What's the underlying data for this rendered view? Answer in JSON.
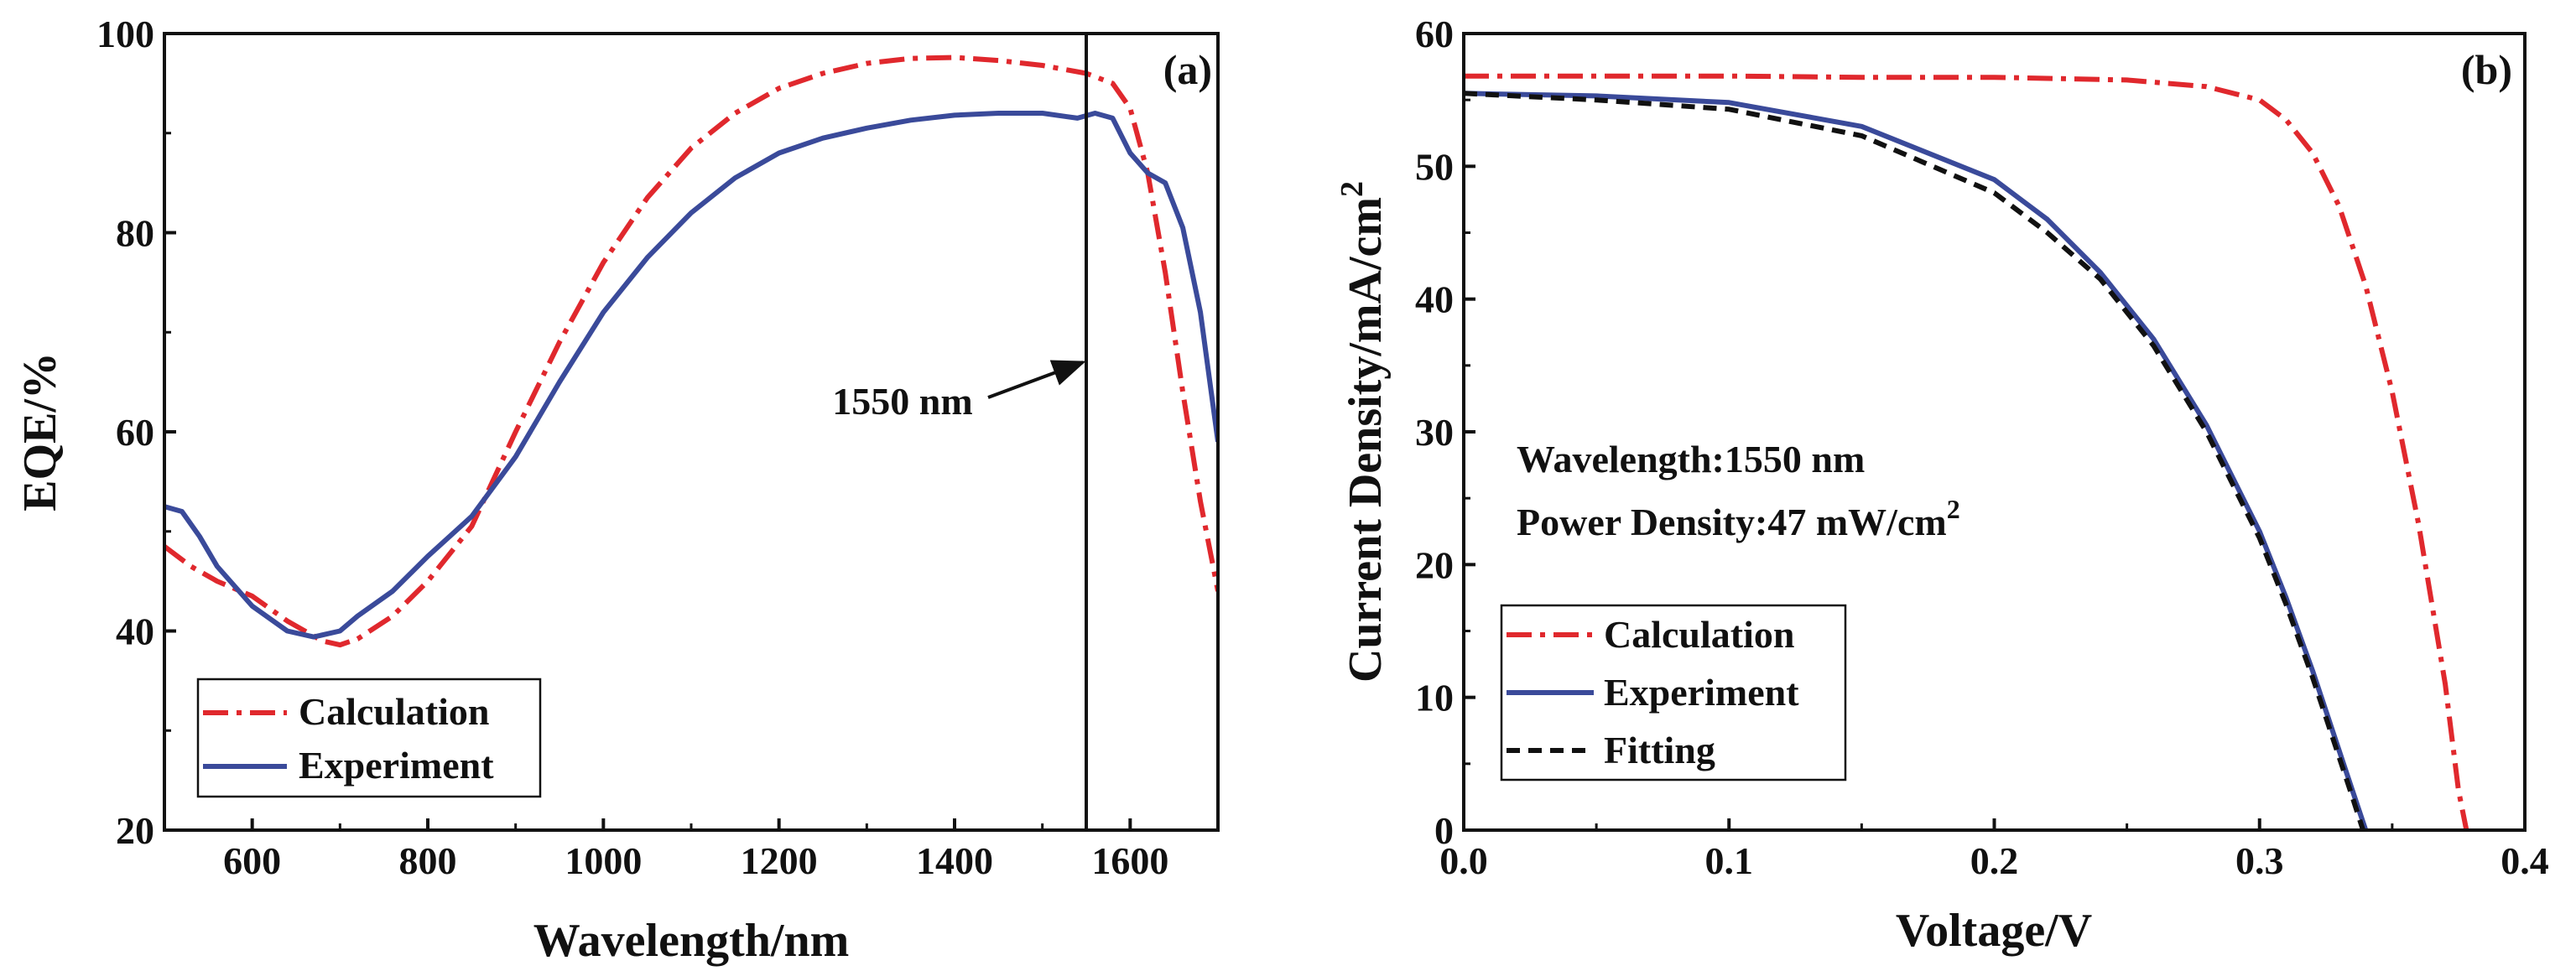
{
  "colors": {
    "calculation": "#e0282d",
    "experiment": "#3a4a9a",
    "fitting": "#111111",
    "axis": "#111111"
  },
  "chart_data": [
    {
      "type": "line",
      "panel_label": "(a)",
      "xlabel": "Wavelength/nm",
      "ylabel": "EQE/%",
      "xlim": [
        500,
        1700
      ],
      "ylim": [
        20,
        100
      ],
      "xticks": [
        600,
        800,
        1000,
        1200,
        1400,
        1600
      ],
      "yticks": [
        20,
        40,
        60,
        80,
        100
      ],
      "xtick_labels": [
        "600",
        "800",
        "1000",
        "1200",
        "1400",
        "1600"
      ],
      "ytick_labels": [
        "20",
        "40",
        "60",
        "80",
        "100"
      ],
      "grid": false,
      "legend_position": "bottom-left",
      "vertical_marker": {
        "x": 1550
      },
      "annotation": {
        "text": "1550 nm"
      },
      "series": [
        {
          "name": "Calculation",
          "style": "dash-dot",
          "color": "#e0282d",
          "x": [
            500,
            530,
            560,
            600,
            640,
            680,
            700,
            720,
            760,
            800,
            850,
            900,
            950,
            1000,
            1050,
            1100,
            1150,
            1200,
            1250,
            1300,
            1350,
            1400,
            1450,
            1500,
            1550,
            1580,
            1600,
            1620,
            1640,
            1660,
            1680,
            1700
          ],
          "y": [
            48.5,
            46.5,
            45,
            43.5,
            41,
            39,
            38.6,
            39.2,
            41.5,
            45,
            50.5,
            60,
            69,
            77,
            83.5,
            88.5,
            92,
            94.5,
            96,
            97,
            97.5,
            97.6,
            97.3,
            96.8,
            96,
            95,
            92.5,
            86,
            76,
            64,
            53,
            44
          ]
        },
        {
          "name": "Experiment",
          "style": "solid",
          "color": "#3a4a9a",
          "x": [
            500,
            520,
            540,
            560,
            600,
            640,
            670,
            700,
            720,
            760,
            800,
            850,
            900,
            950,
            1000,
            1050,
            1100,
            1150,
            1200,
            1250,
            1300,
            1350,
            1400,
            1450,
            1500,
            1540,
            1560,
            1580,
            1600,
            1620,
            1640,
            1660,
            1680,
            1700
          ],
          "y": [
            52.5,
            52,
            49.5,
            46.5,
            42.5,
            40,
            39.4,
            40,
            41.5,
            44,
            47.5,
            51.5,
            57.5,
            65,
            72,
            77.5,
            82,
            85.5,
            88,
            89.5,
            90.5,
            91.3,
            91.8,
            92,
            92,
            91.5,
            92,
            91.5,
            88,
            86,
            85,
            80.5,
            72,
            59
          ]
        }
      ]
    },
    {
      "type": "line",
      "panel_label": "(b)",
      "xlabel": "Voltage/V",
      "ylabel": "Current Density/mA/cm",
      "ylabel_superscript": "2",
      "xlim": [
        0,
        0.4
      ],
      "ylim": [
        0,
        60
      ],
      "xticks": [
        0.0,
        0.1,
        0.2,
        0.3,
        0.4
      ],
      "yticks": [
        0,
        10,
        20,
        30,
        40,
        50,
        60
      ],
      "xtick_labels": [
        "0.0",
        "0.1",
        "0.2",
        "0.3",
        "0.4"
      ],
      "ytick_labels": [
        "0",
        "10",
        "20",
        "30",
        "40",
        "50",
        "60"
      ],
      "grid": false,
      "legend_position": "bottom-left",
      "annotations": [
        {
          "text": "Wavelength:1550 nm",
          "sup": ""
        },
        {
          "text": "Power Density:47 mW/cm",
          "sup": "2"
        }
      ],
      "series": [
        {
          "name": "Calculation",
          "style": "dash-dot",
          "color": "#e0282d",
          "x": [
            0,
            0.05,
            0.1,
            0.15,
            0.2,
            0.25,
            0.28,
            0.3,
            0.31,
            0.32,
            0.33,
            0.34,
            0.35,
            0.36,
            0.37,
            0.375,
            0.378
          ],
          "y": [
            56.8,
            56.8,
            56.8,
            56.7,
            56.7,
            56.5,
            56,
            55,
            53.5,
            51,
            47,
            41,
            33,
            23,
            11,
            3,
            0
          ]
        },
        {
          "name": "Experiment",
          "style": "solid",
          "color": "#3a4a9a",
          "x": [
            0,
            0.05,
            0.1,
            0.15,
            0.2,
            0.22,
            0.24,
            0.26,
            0.28,
            0.3,
            0.31,
            0.32,
            0.33,
            0.335,
            0.34
          ],
          "y": [
            55.5,
            55.3,
            54.8,
            53,
            49,
            46,
            42,
            37,
            30.5,
            22.5,
            17.5,
            12,
            6,
            3,
            0
          ]
        },
        {
          "name": "Fitting",
          "style": "dashed",
          "color": "#111111",
          "x": [
            0,
            0.05,
            0.1,
            0.15,
            0.2,
            0.22,
            0.24,
            0.26,
            0.28,
            0.3,
            0.31,
            0.32,
            0.33,
            0.335,
            0.339
          ],
          "y": [
            55.5,
            55,
            54.3,
            52.3,
            48,
            45,
            41.5,
            36.5,
            30,
            22,
            17,
            11.5,
            5.5,
            2.5,
            0
          ]
        }
      ]
    }
  ]
}
